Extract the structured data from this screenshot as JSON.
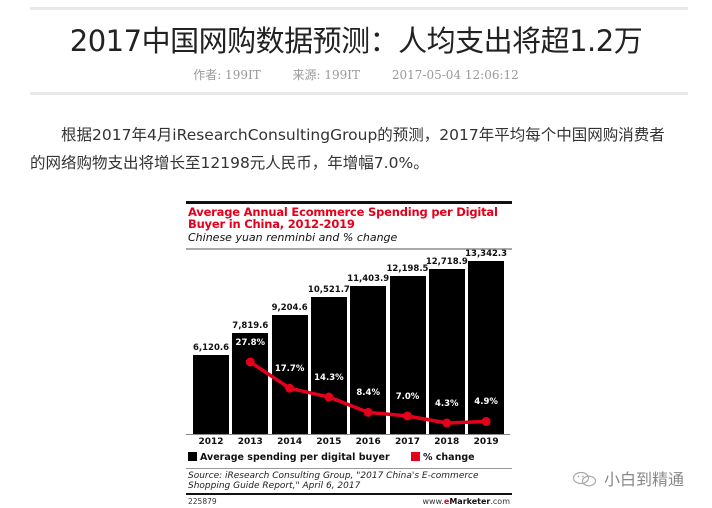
{
  "article": {
    "title": "2017中国网购数据预测：人均支出将超1.2万",
    "author_label": "作者: 199IT",
    "source_label": "来源: 199IT",
    "datetime": "2017-05-04 12:06:12",
    "paragraph": "根据2017年4月iResearchConsultingGroup的预测，2017年平均每个中国网购消费者的网络购物支出将增长至12198元人民币，年增幅7.0%。"
  },
  "chart_data": {
    "type": "bar",
    "title": "Average Annual Ecommerce Spending per Digital Buyer in China, 2012-2019",
    "subtitle": "Chinese yuan renminbi and % change",
    "categories": [
      "2012",
      "2013",
      "2014",
      "2015",
      "2016",
      "2017",
      "2018",
      "2019"
    ],
    "series": [
      {
        "name": "Average spending per digital buyer",
        "type": "bar",
        "color": "#000000",
        "values": [
          6120.6,
          7819.6,
          9204.6,
          10521.7,
          11403.9,
          12198.5,
          12718.9,
          13342.3
        ],
        "labels": [
          "6,120.6",
          "7,819.6",
          "9,204.6",
          "10,521.7",
          "11,403.9",
          "12,198.5",
          "12,718.9",
          "13,342.3"
        ]
      },
      {
        "name": "% change",
        "type": "line",
        "color": "#e4001b",
        "values": [
          null,
          27.8,
          17.7,
          14.3,
          8.4,
          7.0,
          4.3,
          4.9
        ],
        "labels": [
          "",
          "27.8%",
          "17.7%",
          "14.3%",
          "8.4%",
          "7.0%",
          "4.3%",
          "4.9%"
        ]
      }
    ],
    "legend": [
      "Average spending per digital buyer",
      "% change"
    ],
    "legend_position": "bottom",
    "grid": false,
    "source": "Source: iResearch Consulting Group, \"2017 China's E-commerce Shopping Guide Report,\" April 6, 2017",
    "chart_id": "225879",
    "brand": {
      "pre": "www.",
      "e": "e",
      "name": "Marketer",
      "post": ".com"
    }
  },
  "watermark": {
    "text": "小白到精通",
    "icon": "wechat-icon"
  }
}
